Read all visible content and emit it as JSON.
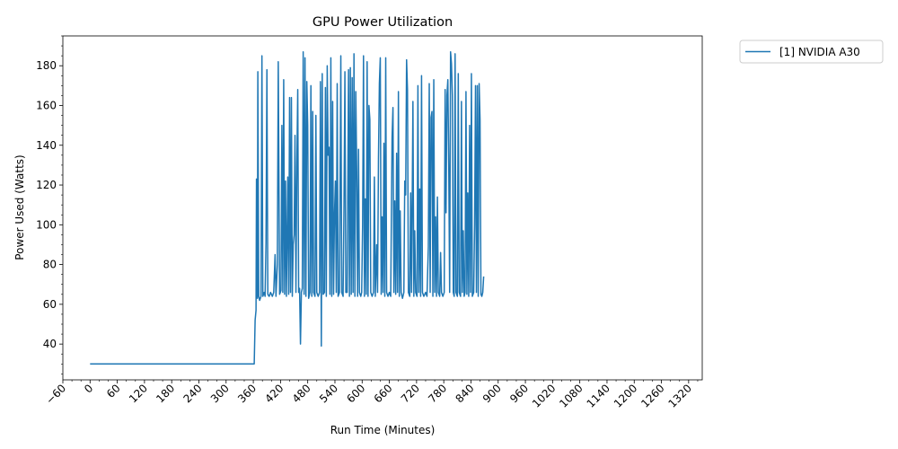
{
  "chart_data": {
    "type": "line",
    "title": "GPU Power Utilization",
    "xlabel": "Run Time (Minutes)",
    "ylabel": "Power Used (Watts)",
    "xlim": [
      -60,
      1350
    ],
    "ylim": [
      22,
      195
    ],
    "x_major_ticks": [
      -60,
      0,
      60,
      120,
      180,
      240,
      300,
      360,
      420,
      480,
      540,
      600,
      660,
      720,
      780,
      840,
      900,
      960,
      1020,
      1080,
      1140,
      1200,
      1260,
      1320
    ],
    "x_tick_labels": [
      "−60",
      "0",
      "60",
      "120",
      "180",
      "240",
      "300",
      "360",
      "420",
      "480",
      "540",
      "600",
      "660",
      "720",
      "780",
      "840",
      "900",
      "960",
      "1020",
      "1080",
      "1140",
      "1200",
      "1260",
      "1320"
    ],
    "x_minor_step": 20,
    "y_major_ticks": [
      40,
      60,
      80,
      100,
      120,
      140,
      160,
      180
    ],
    "y_tick_labels": [
      "40",
      "60",
      "80",
      "100",
      "120",
      "140",
      "160",
      "180"
    ],
    "y_minor_step": 5,
    "grid": false,
    "legend_position": "outside-top-right",
    "series": [
      {
        "name": "[1] NVIDIA A30",
        "color": "#1f77b4",
        "points": [
          [
            0,
            30
          ],
          [
            100,
            30
          ],
          [
            200,
            30
          ],
          [
            300,
            30
          ],
          [
            362,
            30
          ],
          [
            364,
            52
          ],
          [
            366,
            57
          ],
          [
            367,
            123
          ],
          [
            369,
            63
          ],
          [
            370,
            177
          ],
          [
            372,
            64
          ],
          [
            374,
            62
          ],
          [
            377,
            64
          ],
          [
            379,
            185
          ],
          [
            381,
            64
          ],
          [
            384,
            66
          ],
          [
            386,
            64
          ],
          [
            388,
            91
          ],
          [
            390,
            178
          ],
          [
            392,
            65
          ],
          [
            395,
            64
          ],
          [
            398,
            66
          ],
          [
            402,
            64
          ],
          [
            405,
            66
          ],
          [
            408,
            85
          ],
          [
            410,
            64
          ],
          [
            413,
            80
          ],
          [
            415,
            182
          ],
          [
            418,
            65
          ],
          [
            421,
            67
          ],
          [
            423,
            150
          ],
          [
            425,
            66
          ],
          [
            427,
            173
          ],
          [
            429,
            65
          ],
          [
            431,
            122
          ],
          [
            433,
            64
          ],
          [
            436,
            124
          ],
          [
            438,
            65
          ],
          [
            440,
            164
          ],
          [
            442,
            66
          ],
          [
            444,
            164
          ],
          [
            446,
            64
          ],
          [
            448,
            90
          ],
          [
            450,
            95
          ],
          [
            452,
            145
          ],
          [
            454,
            66
          ],
          [
            456,
            130
          ],
          [
            458,
            168
          ],
          [
            460,
            66
          ],
          [
            462,
            68
          ],
          [
            464,
            40
          ],
          [
            466,
            66
          ],
          [
            468,
            68
          ],
          [
            470,
            187
          ],
          [
            472,
            65
          ],
          [
            474,
            184
          ],
          [
            476,
            64
          ],
          [
            478,
            172
          ],
          [
            480,
            150
          ],
          [
            482,
            63
          ],
          [
            485,
            66
          ],
          [
            487,
            170
          ],
          [
            489,
            64
          ],
          [
            491,
            157
          ],
          [
            493,
            66
          ],
          [
            496,
            64
          ],
          [
            498,
            155
          ],
          [
            500,
            66
          ],
          [
            503,
            64
          ],
          [
            506,
            66
          ],
          [
            508,
            172
          ],
          [
            510,
            39
          ],
          [
            512,
            176
          ],
          [
            514,
            65
          ],
          [
            517,
            66
          ],
          [
            519,
            169
          ],
          [
            521,
            64
          ],
          [
            523,
            180
          ],
          [
            525,
            135
          ],
          [
            527,
            139
          ],
          [
            529,
            65
          ],
          [
            531,
            184
          ],
          [
            533,
            64
          ],
          [
            535,
            162
          ],
          [
            537,
            65
          ],
          [
            539,
            105
          ],
          [
            541,
            122
          ],
          [
            543,
            66
          ],
          [
            545,
            171
          ],
          [
            547,
            64
          ],
          [
            550,
            66
          ],
          [
            553,
            185
          ],
          [
            555,
            66
          ],
          [
            558,
            64
          ],
          [
            560,
            110
          ],
          [
            562,
            177
          ],
          [
            564,
            66
          ],
          [
            567,
            66
          ],
          [
            570,
            178
          ],
          [
            572,
            64
          ],
          [
            574,
            179
          ],
          [
            576,
            65
          ],
          [
            578,
            174
          ],
          [
            580,
            66
          ],
          [
            582,
            186
          ],
          [
            584,
            64
          ],
          [
            586,
            167
          ],
          [
            588,
            128
          ],
          [
            590,
            64
          ],
          [
            592,
            138
          ],
          [
            594,
            66
          ],
          [
            597,
            64
          ],
          [
            599,
            66
          ],
          [
            601,
            100
          ],
          [
            603,
            185
          ],
          [
            605,
            64
          ],
          [
            607,
            113
          ],
          [
            609,
            65
          ],
          [
            611,
            182
          ],
          [
            613,
            64
          ],
          [
            615,
            160
          ],
          [
            617,
            153
          ],
          [
            619,
            66
          ],
          [
            622,
            64
          ],
          [
            625,
            66
          ],
          [
            627,
            124
          ],
          [
            629,
            64
          ],
          [
            632,
            90
          ],
          [
            634,
            66
          ],
          [
            636,
            133
          ],
          [
            638,
            171
          ],
          [
            640,
            184
          ],
          [
            642,
            65
          ],
          [
            644,
            104
          ],
          [
            646,
            66
          ],
          [
            648,
            141
          ],
          [
            650,
            64
          ],
          [
            652,
            184
          ],
          [
            654,
            66
          ],
          [
            657,
            64
          ],
          [
            660,
            66
          ],
          [
            663,
            64
          ],
          [
            666,
            144
          ],
          [
            668,
            159
          ],
          [
            670,
            66
          ],
          [
            672,
            112
          ],
          [
            674,
            65
          ],
          [
            676,
            136
          ],
          [
            678,
            66
          ],
          [
            680,
            167
          ],
          [
            682,
            64
          ],
          [
            684,
            107
          ],
          [
            686,
            66
          ],
          [
            689,
            63
          ],
          [
            692,
            66
          ],
          [
            694,
            122
          ],
          [
            696,
            115
          ],
          [
            698,
            183
          ],
          [
            700,
            168
          ],
          [
            702,
            66
          ],
          [
            705,
            64
          ],
          [
            707,
            116
          ],
          [
            709,
            66
          ],
          [
            712,
            162
          ],
          [
            714,
            64
          ],
          [
            716,
            97
          ],
          [
            718,
            66
          ],
          [
            721,
            64
          ],
          [
            723,
            170
          ],
          [
            725,
            66
          ],
          [
            727,
            118
          ],
          [
            729,
            64
          ],
          [
            731,
            175
          ],
          [
            733,
            66
          ],
          [
            736,
            64
          ],
          [
            740,
            66
          ],
          [
            743,
            64
          ],
          [
            746,
            89
          ],
          [
            748,
            171
          ],
          [
            750,
            66
          ],
          [
            752,
            154
          ],
          [
            754,
            157
          ],
          [
            756,
            64
          ],
          [
            758,
            173
          ],
          [
            760,
            66
          ],
          [
            762,
            104
          ],
          [
            764,
            64
          ],
          [
            766,
            114
          ],
          [
            768,
            66
          ],
          [
            771,
            64
          ],
          [
            773,
            86
          ],
          [
            775,
            66
          ],
          [
            778,
            64
          ],
          [
            781,
            66
          ],
          [
            783,
            168
          ],
          [
            785,
            106
          ],
          [
            787,
            165
          ],
          [
            789,
            173
          ],
          [
            791,
            130
          ],
          [
            793,
            66
          ],
          [
            795,
            187
          ],
          [
            797,
            181
          ],
          [
            799,
            165
          ],
          [
            801,
            66
          ],
          [
            803,
            64
          ],
          [
            805,
            186
          ],
          [
            807,
            66
          ],
          [
            810,
            64
          ],
          [
            812,
            176
          ],
          [
            814,
            66
          ],
          [
            817,
            64
          ],
          [
            819,
            162
          ],
          [
            821,
            66
          ],
          [
            823,
            97
          ],
          [
            825,
            64
          ],
          [
            827,
            66
          ],
          [
            829,
            167
          ],
          [
            831,
            65
          ],
          [
            833,
            116
          ],
          [
            835,
            64
          ],
          [
            837,
            150
          ],
          [
            839,
            66
          ],
          [
            841,
            176
          ],
          [
            843,
            64
          ],
          [
            846,
            66
          ],
          [
            848,
            100
          ],
          [
            850,
            170
          ],
          [
            852,
            66
          ],
          [
            854,
            170
          ],
          [
            856,
            64
          ],
          [
            858,
            171
          ],
          [
            860,
            153
          ],
          [
            862,
            65
          ],
          [
            864,
            64
          ],
          [
            866,
            66
          ],
          [
            868,
            74
          ]
        ]
      }
    ]
  }
}
